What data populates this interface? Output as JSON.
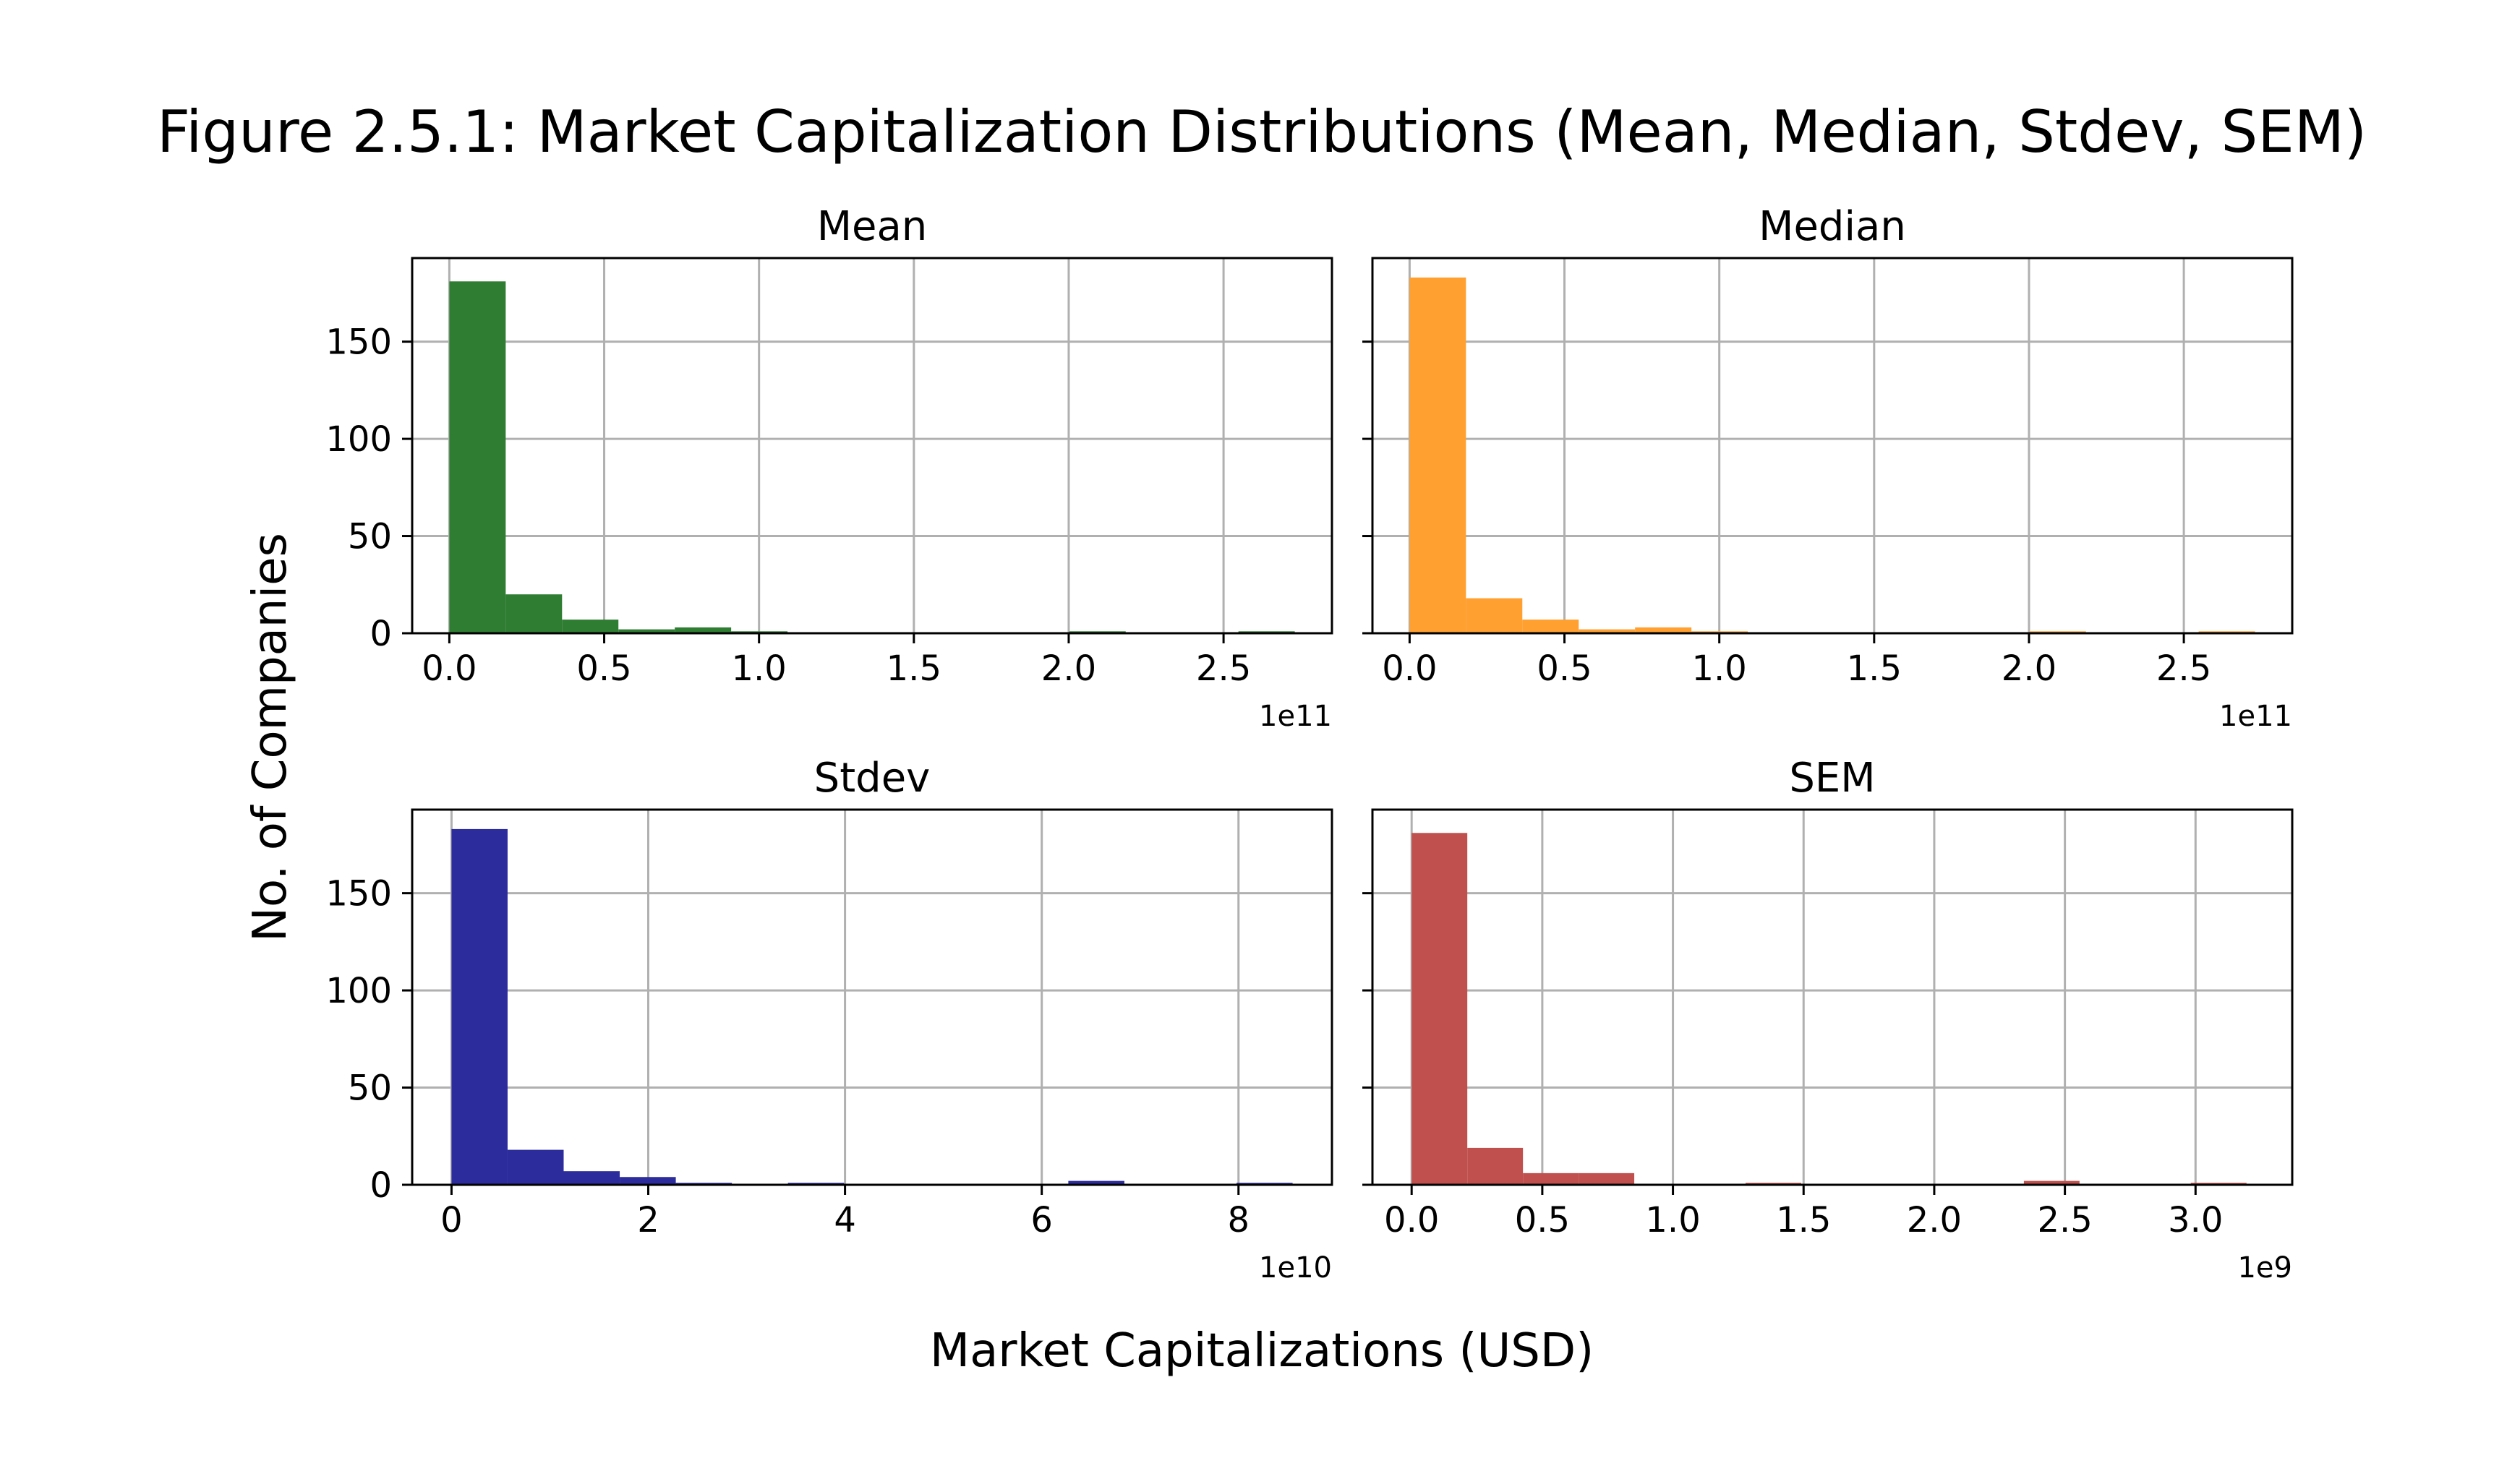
{
  "figure": {
    "title": "Figure 2.5.1: Market Capitalization Distributions (Mean, Median, Stdev, SEM)",
    "xlabel": "Market Capitalizations (USD)",
    "ylabel": "No. of Companies"
  },
  "chart_data": [
    {
      "type": "bar",
      "title": "Mean",
      "color": "#2e7d32",
      "x_scale_label": "1e11",
      "xlim": [
        -0.12,
        2.85
      ],
      "xticks": [
        0.0,
        0.5,
        1.0,
        1.5,
        2.0,
        2.5
      ],
      "xtick_labels": [
        "0.0",
        "0.5",
        "1.0",
        "1.5",
        "2.0",
        "2.5"
      ],
      "ylim": [
        0,
        193
      ],
      "yticks": [
        0,
        50,
        100,
        150
      ],
      "ytick_labels": [
        "0",
        "50",
        "100",
        "150"
      ],
      "bin_start": 0.0,
      "bin_width": 0.182,
      "values": [
        181,
        20,
        7,
        2,
        3,
        1,
        0,
        0,
        0,
        0,
        0,
        1,
        0,
        0,
        1
      ]
    },
    {
      "type": "bar",
      "title": "Median",
      "color": "#ffa030",
      "x_scale_label": "1e11",
      "xlim": [
        -0.12,
        2.85
      ],
      "xticks": [
        0.0,
        0.5,
        1.0,
        1.5,
        2.0,
        2.5
      ],
      "xtick_labels": [
        "0.0",
        "0.5",
        "1.0",
        "1.5",
        "2.0",
        "2.5"
      ],
      "ylim": [
        0,
        193
      ],
      "yticks": [
        0,
        50,
        100,
        150
      ],
      "ytick_labels": [
        "",
        "",
        "",
        ""
      ],
      "bin_start": 0.0,
      "bin_width": 0.182,
      "values": [
        183,
        18,
        7,
        2,
        3,
        1,
        0,
        0,
        0,
        0,
        0,
        1,
        0,
        0,
        1
      ]
    },
    {
      "type": "bar",
      "title": "Stdev",
      "color": "#2c2c9c",
      "x_scale_label": "1e10",
      "xlim": [
        -0.4,
        8.95
      ],
      "xticks": [
        0,
        2,
        4,
        6,
        8
      ],
      "xtick_labels": [
        "0",
        "2",
        "4",
        "6",
        "8"
      ],
      "ylim": [
        0,
        193
      ],
      "yticks": [
        0,
        50,
        100,
        150
      ],
      "ytick_labels": [
        "0",
        "50",
        "100",
        "150"
      ],
      "bin_start": 0.0,
      "bin_width": 0.57,
      "values": [
        183,
        18,
        7,
        4,
        1,
        0,
        1,
        0,
        0,
        0,
        0,
        2,
        0,
        0,
        1
      ]
    },
    {
      "type": "bar",
      "title": "SEM",
      "color": "#c0504d",
      "x_scale_label": "1e9",
      "xlim": [
        -0.15,
        3.37
      ],
      "xticks": [
        0.0,
        0.5,
        1.0,
        1.5,
        2.0,
        2.5,
        3.0
      ],
      "xtick_labels": [
        "0.0",
        "0.5",
        "1.0",
        "1.5",
        "2.0",
        "2.5",
        "3.0"
      ],
      "ylim": [
        0,
        193
      ],
      "yticks": [
        0,
        50,
        100,
        150
      ],
      "ytick_labels": [
        "",
        "",
        "",
        ""
      ],
      "bin_start": 0.0,
      "bin_width": 0.213,
      "values": [
        181,
        19,
        6,
        6,
        0,
        0,
        1,
        0,
        0,
        0,
        0,
        2,
        0,
        0,
        1
      ]
    }
  ]
}
